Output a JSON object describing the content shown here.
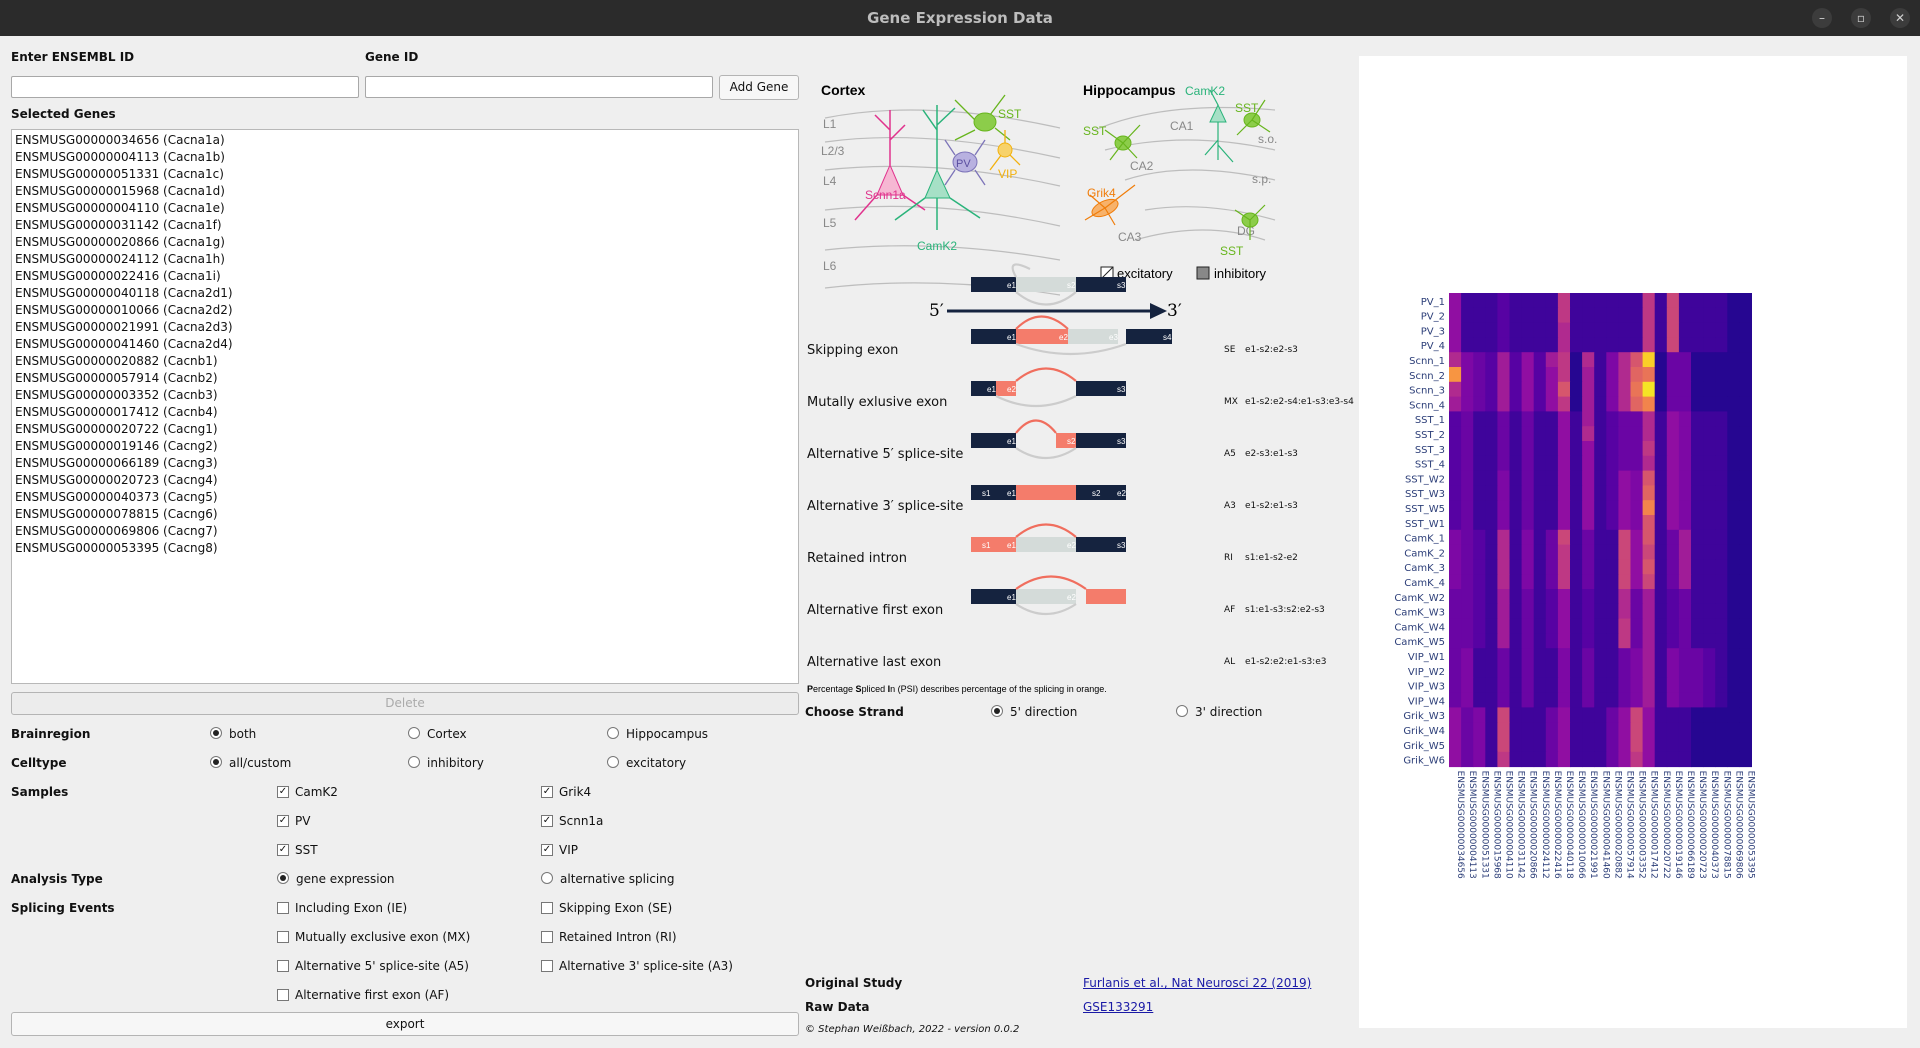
{
  "window": {
    "title": "Gene Expression Data"
  },
  "inputs": {
    "ensembl_label": "Enter ENSEMBL ID",
    "gene_label": "Gene ID",
    "ensembl_value": "",
    "gene_value": "",
    "add_gene": "Add Gene"
  },
  "selected": {
    "label": "Selected Genes",
    "genes": [
      "ENSMUSG00000034656 (Cacna1a)",
      "ENSMUSG00000004113 (Cacna1b)",
      "ENSMUSG00000051331 (Cacna1c)",
      "ENSMUSG00000015968 (Cacna1d)",
      "ENSMUSG00000004110 (Cacna1e)",
      "ENSMUSG00000031142 (Cacna1f)",
      "ENSMUSG00000020866 (Cacna1g)",
      "ENSMUSG00000024112 (Cacna1h)",
      "ENSMUSG00000022416 (Cacna1i)",
      "ENSMUSG00000040118 (Cacna2d1)",
      "ENSMUSG00000010066 (Cacna2d2)",
      "ENSMUSG00000021991 (Cacna2d3)",
      "ENSMUSG00000041460 (Cacna2d4)",
      "ENSMUSG00000020882 (Cacnb1)",
      "ENSMUSG00000057914 (Cacnb2)",
      "ENSMUSG00000003352 (Cacnb3)",
      "ENSMUSG00000017412 (Cacnb4)",
      "ENSMUSG00000020722 (Cacng1)",
      "ENSMUSG00000019146 (Cacng2)",
      "ENSMUSG00000066189 (Cacng3)",
      "ENSMUSG00000020723 (Cacng4)",
      "ENSMUSG00000040373 (Cacng5)",
      "ENSMUSG00000078815 (Cacng6)",
      "ENSMUSG00000069806 (Cacng7)",
      "ENSMUSG00000053395 (Cacng8)"
    ],
    "delete": "Delete"
  },
  "brainregion": {
    "label": "Brainregion",
    "options": [
      "both",
      "Cortex",
      "Hippocampus"
    ],
    "selected": "both"
  },
  "celltype": {
    "label": "Celltype",
    "options": [
      "all/custom",
      "inhibitory",
      "excitatory"
    ],
    "selected": "all/custom"
  },
  "samples": {
    "label": "Samples",
    "items": [
      {
        "name": "CamK2",
        "checked": true
      },
      {
        "name": "Grik4",
        "checked": true
      },
      {
        "name": "PV",
        "checked": true
      },
      {
        "name": "Scnn1a",
        "checked": true
      },
      {
        "name": "SST",
        "checked": true
      },
      {
        "name": "VIP",
        "checked": true
      }
    ]
  },
  "analysis": {
    "label": "Analysis Type",
    "options": [
      "gene expression",
      "alternative splicing"
    ],
    "selected": "gene expression"
  },
  "splicing": {
    "label": "Splicing Events",
    "items": [
      "Including Exon (IE)",
      "Skipping Exon (SE)",
      "Mutually exclusive exon (MX)",
      "Retained Intron (RI)",
      "Alternative 5' splice-site (A5)",
      "Alternative 3' splice-site (A3)",
      "Alternative first exon (AF)"
    ]
  },
  "export": "export",
  "diagram": {
    "cortex_title": "Cortex",
    "hippo_title": "Hippocampus",
    "layers": [
      "L1",
      "L2/3",
      "L4",
      "L5",
      "L6"
    ],
    "cortex_cells": {
      "scnn1a": "Scnn1a",
      "pv": "PV",
      "sst": "SST",
      "vip": "VIP",
      "camk2": "CamK2"
    },
    "hippo_labels": {
      "sst1": "SST",
      "camk2": "CamK2",
      "ca1": "CA1",
      "sst2": "SST",
      "so": "s.o.",
      "ca2": "CA2",
      "sp": "s.p.",
      "grik4": "Grik4",
      "ca3": "CA3",
      "dg": "DG",
      "sst3": "SST"
    },
    "legend": {
      "exc": "excitatory",
      "inh": "inhibitory"
    },
    "five": "5′",
    "three": "3′"
  },
  "events": [
    {
      "name": "Skipping exon",
      "abbr": "SE",
      "formula": "e1-s2:e2-s3"
    },
    {
      "name": "Mutally exlusive exon",
      "abbr": "MX",
      "formula": "e1-s2:e2-s4:e1-s3:e3-s4"
    },
    {
      "name": "Alternative 5′ splice-site",
      "abbr": "A5",
      "formula": "e2-s3:e1-s3"
    },
    {
      "name": "Alternative 3′ splice-site",
      "abbr": "A3",
      "formula": "e1-s2:e1-s3"
    },
    {
      "name": "Retained intron",
      "abbr": "RI",
      "formula": "s1:e1-s2-e2"
    },
    {
      "name": "Alternative first exon",
      "abbr": "AF",
      "formula": "s1:e1-s3:s2:e2-s3"
    },
    {
      "name": "Alternative last exon",
      "abbr": "AL",
      "formula": "e1-s2:e2:e1-s3:e3"
    }
  ],
  "psi_note": {
    "p": "P",
    "t1": "ercentage ",
    "s": "S",
    "t2": "pliced ",
    "i": "I",
    "t3": "n (PSI) describes percentage of the splicing in orange."
  },
  "strand": {
    "label": "Choose Strand",
    "options": [
      "5' direction",
      "3' direction"
    ],
    "selected": "5' direction"
  },
  "study": {
    "label": "Original Study",
    "link": "Furlanis et al., Nat Neurosci 22 (2019)"
  },
  "raw": {
    "label": "Raw Data",
    "link": "GSE133291"
  },
  "copyright": "© Stephan Weißbach, 2022 - version 0.0.2",
  "colors": {
    "exon_dark": "#15233f",
    "exon_orange": "#f47c6b",
    "exon_grey": "#d4dbd9",
    "arc": "#f06e5e"
  },
  "chart_data": {
    "type": "heatmap",
    "y_labels": [
      "PV_1",
      "PV_2",
      "PV_3",
      "PV_4",
      "Scnn_1",
      "Scnn_2",
      "Scnn_3",
      "Scnn_4",
      "SST_1",
      "SST_2",
      "SST_3",
      "SST_4",
      "SST_W2",
      "SST_W3",
      "SST_W5",
      "SST_W1",
      "CamK_1",
      "CamK_2",
      "CamK_3",
      "CamK_4",
      "CamK_W2",
      "CamK_W3",
      "CamK_W4",
      "CamK_W5",
      "VIP_W1",
      "VIP_W2",
      "VIP_W3",
      "VIP_W4",
      "Grik_W3",
      "Grik_W4",
      "Grik_W5",
      "Grik_W6"
    ],
    "x_labels": [
      "ENSMUSG00000034656",
      "ENSMUSG00000004113",
      "ENSMUSG00000051331",
      "ENSMUSG00000015968",
      "ENSMUSG00000004110",
      "ENSMUSG00000031142",
      "ENSMUSG00000020866",
      "ENSMUSG00000024112",
      "ENSMUSG00000022416",
      "ENSMUSG00000040118",
      "ENSMUSG00000010066",
      "ENSMUSG00000021991",
      "ENSMUSG00000041460",
      "ENSMUSG00000020882",
      "ENSMUSG00000057914",
      "ENSMUSG00000003352",
      "ENSMUSG00000017412",
      "ENSMUSG00000020722",
      "ENSMUSG00000019146",
      "ENSMUSG00000066189",
      "ENSMUSG00000020723",
      "ENSMUSG00000040373",
      "ENSMUSG00000078815",
      "ENSMUSG00000069806",
      "ENSMUSG00000053395"
    ],
    "colormap": "plasma",
    "values": [
      [
        0.3,
        0.1,
        0.1,
        0.1,
        0.15,
        0.1,
        0.1,
        0.1,
        0.1,
        0.45,
        0.1,
        0.1,
        0.1,
        0.1,
        0.1,
        0.1,
        0.45,
        0.1,
        0.5,
        0.1,
        0.1,
        0.1,
        0.1,
        0.05,
        0.05
      ],
      [
        0.3,
        0.1,
        0.1,
        0.1,
        0.15,
        0.1,
        0.1,
        0.1,
        0.1,
        0.45,
        0.1,
        0.1,
        0.1,
        0.1,
        0.1,
        0.1,
        0.45,
        0.1,
        0.5,
        0.1,
        0.1,
        0.1,
        0.1,
        0.05,
        0.05
      ],
      [
        0.3,
        0.1,
        0.1,
        0.1,
        0.15,
        0.1,
        0.1,
        0.1,
        0.1,
        0.4,
        0.1,
        0.1,
        0.1,
        0.1,
        0.1,
        0.1,
        0.45,
        0.1,
        0.5,
        0.1,
        0.1,
        0.1,
        0.1,
        0.05,
        0.05
      ],
      [
        0.3,
        0.1,
        0.1,
        0.1,
        0.15,
        0.1,
        0.1,
        0.1,
        0.1,
        0.4,
        0.1,
        0.1,
        0.1,
        0.1,
        0.1,
        0.1,
        0.45,
        0.1,
        0.5,
        0.1,
        0.1,
        0.1,
        0.1,
        0.05,
        0.05
      ],
      [
        0.4,
        0.25,
        0.2,
        0.15,
        0.35,
        0.15,
        0.3,
        0.15,
        0.35,
        0.45,
        0.05,
        0.4,
        0.1,
        0.25,
        0.4,
        0.55,
        0.9,
        0.05,
        0.2,
        0.2,
        0.05,
        0.05,
        0.05,
        0.05,
        0.05
      ],
      [
        0.75,
        0.25,
        0.2,
        0.15,
        0.35,
        0.15,
        0.3,
        0.15,
        0.3,
        0.45,
        0.05,
        0.35,
        0.1,
        0.25,
        0.4,
        0.6,
        0.65,
        0.05,
        0.2,
        0.2,
        0.05,
        0.05,
        0.05,
        0.05,
        0.05
      ],
      [
        0.4,
        0.25,
        0.2,
        0.15,
        0.35,
        0.15,
        0.3,
        0.15,
        0.3,
        0.55,
        0.05,
        0.35,
        0.1,
        0.25,
        0.4,
        0.65,
        0.95,
        0.05,
        0.2,
        0.2,
        0.05,
        0.05,
        0.05,
        0.05,
        0.05
      ],
      [
        0.35,
        0.25,
        0.2,
        0.15,
        0.35,
        0.15,
        0.3,
        0.15,
        0.3,
        0.45,
        0.05,
        0.35,
        0.1,
        0.25,
        0.4,
        0.6,
        0.7,
        0.05,
        0.2,
        0.2,
        0.05,
        0.05,
        0.05,
        0.05,
        0.05
      ],
      [
        0.15,
        0.2,
        0.1,
        0.1,
        0.2,
        0.1,
        0.2,
        0.1,
        0.1,
        0.3,
        0.1,
        0.35,
        0.1,
        0.15,
        0.2,
        0.2,
        0.4,
        0.1,
        0.3,
        0.25,
        0.1,
        0.1,
        0.1,
        0.05,
        0.05
      ],
      [
        0.15,
        0.2,
        0.1,
        0.1,
        0.2,
        0.1,
        0.2,
        0.1,
        0.1,
        0.3,
        0.1,
        0.4,
        0.1,
        0.15,
        0.2,
        0.2,
        0.4,
        0.1,
        0.3,
        0.25,
        0.1,
        0.1,
        0.1,
        0.05,
        0.05
      ],
      [
        0.15,
        0.2,
        0.1,
        0.1,
        0.2,
        0.1,
        0.2,
        0.1,
        0.1,
        0.3,
        0.1,
        0.3,
        0.1,
        0.15,
        0.2,
        0.2,
        0.45,
        0.1,
        0.3,
        0.25,
        0.1,
        0.1,
        0.1,
        0.05,
        0.05
      ],
      [
        0.15,
        0.2,
        0.1,
        0.1,
        0.2,
        0.1,
        0.2,
        0.1,
        0.1,
        0.3,
        0.1,
        0.3,
        0.1,
        0.15,
        0.2,
        0.2,
        0.4,
        0.1,
        0.3,
        0.25,
        0.1,
        0.1,
        0.1,
        0.05,
        0.05
      ],
      [
        0.15,
        0.2,
        0.1,
        0.1,
        0.25,
        0.1,
        0.2,
        0.1,
        0.1,
        0.3,
        0.1,
        0.3,
        0.1,
        0.15,
        0.3,
        0.25,
        0.55,
        0.1,
        0.3,
        0.25,
        0.1,
        0.1,
        0.1,
        0.05,
        0.05
      ],
      [
        0.15,
        0.2,
        0.1,
        0.1,
        0.25,
        0.1,
        0.2,
        0.1,
        0.1,
        0.3,
        0.1,
        0.3,
        0.1,
        0.15,
        0.3,
        0.25,
        0.6,
        0.1,
        0.3,
        0.25,
        0.1,
        0.1,
        0.1,
        0.05,
        0.05
      ],
      [
        0.15,
        0.2,
        0.1,
        0.1,
        0.25,
        0.1,
        0.2,
        0.1,
        0.1,
        0.3,
        0.1,
        0.3,
        0.1,
        0.15,
        0.3,
        0.25,
        0.7,
        0.1,
        0.3,
        0.25,
        0.1,
        0.1,
        0.1,
        0.05,
        0.05
      ],
      [
        0.15,
        0.2,
        0.1,
        0.1,
        0.25,
        0.1,
        0.2,
        0.1,
        0.1,
        0.3,
        0.1,
        0.3,
        0.1,
        0.15,
        0.3,
        0.25,
        0.55,
        0.1,
        0.3,
        0.25,
        0.1,
        0.1,
        0.1,
        0.05,
        0.05
      ],
      [
        0.25,
        0.2,
        0.15,
        0.1,
        0.4,
        0.1,
        0.25,
        0.1,
        0.2,
        0.5,
        0.1,
        0.2,
        0.1,
        0.1,
        0.5,
        0.3,
        0.55,
        0.1,
        0.2,
        0.35,
        0.1,
        0.1,
        0.1,
        0.05,
        0.05
      ],
      [
        0.25,
        0.2,
        0.15,
        0.1,
        0.4,
        0.1,
        0.25,
        0.1,
        0.2,
        0.45,
        0.1,
        0.2,
        0.1,
        0.1,
        0.5,
        0.3,
        0.5,
        0.1,
        0.2,
        0.35,
        0.1,
        0.1,
        0.1,
        0.05,
        0.05
      ],
      [
        0.25,
        0.2,
        0.15,
        0.1,
        0.4,
        0.1,
        0.25,
        0.1,
        0.2,
        0.45,
        0.1,
        0.2,
        0.1,
        0.1,
        0.5,
        0.3,
        0.55,
        0.1,
        0.2,
        0.35,
        0.1,
        0.1,
        0.1,
        0.05,
        0.05
      ],
      [
        0.25,
        0.2,
        0.15,
        0.1,
        0.4,
        0.1,
        0.25,
        0.1,
        0.2,
        0.45,
        0.1,
        0.2,
        0.1,
        0.1,
        0.5,
        0.3,
        0.5,
        0.1,
        0.2,
        0.35,
        0.1,
        0.1,
        0.1,
        0.05,
        0.05
      ],
      [
        0.2,
        0.2,
        0.15,
        0.1,
        0.35,
        0.1,
        0.2,
        0.1,
        0.15,
        0.3,
        0.1,
        0.15,
        0.1,
        0.1,
        0.4,
        0.2,
        0.35,
        0.1,
        0.15,
        0.2,
        0.1,
        0.1,
        0.1,
        0.05,
        0.05
      ],
      [
        0.2,
        0.2,
        0.15,
        0.1,
        0.35,
        0.1,
        0.2,
        0.1,
        0.15,
        0.3,
        0.1,
        0.15,
        0.1,
        0.1,
        0.4,
        0.2,
        0.35,
        0.1,
        0.15,
        0.2,
        0.1,
        0.1,
        0.1,
        0.05,
        0.05
      ],
      [
        0.2,
        0.2,
        0.15,
        0.1,
        0.35,
        0.1,
        0.2,
        0.1,
        0.15,
        0.3,
        0.1,
        0.15,
        0.1,
        0.1,
        0.45,
        0.2,
        0.35,
        0.1,
        0.15,
        0.2,
        0.1,
        0.1,
        0.1,
        0.05,
        0.05
      ],
      [
        0.2,
        0.2,
        0.15,
        0.1,
        0.35,
        0.1,
        0.2,
        0.1,
        0.15,
        0.3,
        0.1,
        0.15,
        0.1,
        0.1,
        0.45,
        0.2,
        0.35,
        0.1,
        0.15,
        0.2,
        0.1,
        0.1,
        0.1,
        0.05,
        0.05
      ],
      [
        0.2,
        0.25,
        0.1,
        0.1,
        0.2,
        0.1,
        0.2,
        0.1,
        0.1,
        0.25,
        0.1,
        0.2,
        0.1,
        0.1,
        0.2,
        0.25,
        0.35,
        0.1,
        0.25,
        0.2,
        0.2,
        0.15,
        0.1,
        0.05,
        0.05
      ],
      [
        0.2,
        0.25,
        0.1,
        0.1,
        0.2,
        0.1,
        0.2,
        0.1,
        0.1,
        0.25,
        0.1,
        0.2,
        0.1,
        0.1,
        0.2,
        0.25,
        0.35,
        0.1,
        0.25,
        0.2,
        0.2,
        0.15,
        0.1,
        0.05,
        0.05
      ],
      [
        0.2,
        0.25,
        0.1,
        0.1,
        0.2,
        0.1,
        0.2,
        0.1,
        0.1,
        0.25,
        0.1,
        0.2,
        0.1,
        0.1,
        0.2,
        0.25,
        0.35,
        0.1,
        0.25,
        0.2,
        0.2,
        0.15,
        0.1,
        0.05,
        0.05
      ],
      [
        0.2,
        0.25,
        0.1,
        0.1,
        0.2,
        0.1,
        0.2,
        0.1,
        0.1,
        0.25,
        0.1,
        0.2,
        0.1,
        0.1,
        0.2,
        0.25,
        0.35,
        0.1,
        0.25,
        0.2,
        0.2,
        0.15,
        0.1,
        0.05,
        0.05
      ],
      [
        0.3,
        0.2,
        0.25,
        0.1,
        0.5,
        0.1,
        0.1,
        0.1,
        0.2,
        0.3,
        0.1,
        0.1,
        0.1,
        0.2,
        0.3,
        0.5,
        0.3,
        0.1,
        0.1,
        0.1,
        0.05,
        0.05,
        0.05,
        0.05,
        0.05
      ],
      [
        0.3,
        0.2,
        0.25,
        0.1,
        0.5,
        0.1,
        0.1,
        0.1,
        0.2,
        0.3,
        0.1,
        0.1,
        0.1,
        0.2,
        0.3,
        0.5,
        0.3,
        0.1,
        0.1,
        0.1,
        0.05,
        0.05,
        0.05,
        0.05,
        0.05
      ],
      [
        0.3,
        0.2,
        0.25,
        0.1,
        0.5,
        0.1,
        0.1,
        0.1,
        0.2,
        0.3,
        0.1,
        0.1,
        0.1,
        0.2,
        0.3,
        0.5,
        0.3,
        0.1,
        0.1,
        0.1,
        0.05,
        0.05,
        0.05,
        0.05,
        0.05
      ],
      [
        0.3,
        0.2,
        0.25,
        0.1,
        0.45,
        0.1,
        0.1,
        0.1,
        0.2,
        0.3,
        0.1,
        0.1,
        0.1,
        0.2,
        0.3,
        0.45,
        0.3,
        0.1,
        0.1,
        0.1,
        0.05,
        0.05,
        0.05,
        0.05,
        0.05
      ]
    ]
  }
}
